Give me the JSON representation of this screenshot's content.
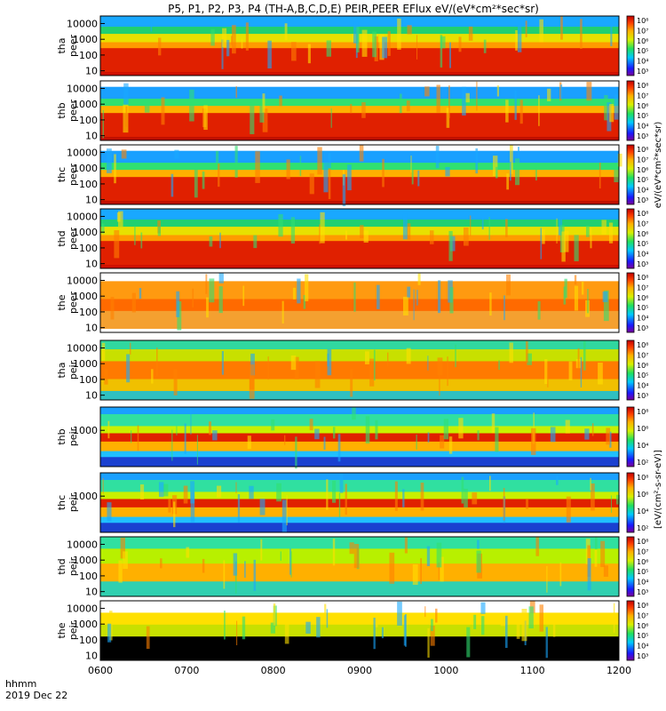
{
  "chart_data": {
    "type": "heatmap",
    "title": "P5, P1, P2, P3, P4 (TH-A,B,C,D,E) PEIR,PEER EFlux eV/(eV*cm²*sec*sr)",
    "x_time_labels": [
      "0600",
      "0700",
      "0800",
      "0900",
      "1000",
      "1100",
      "1200"
    ],
    "x_range_hhmm": [
      "0600",
      "1200"
    ],
    "xlabel_line1": "hhmm",
    "xlabel_line2": "2019 Dec 22",
    "y_scale": "log",
    "colorbar_units": "[eV/(cm²-s-sr-eV)]",
    "colorbar_units_short": "eV/(eV*cm²*sec*sr)",
    "colorbar_tick_labels": [
      "10⁸",
      "10⁷",
      "10⁶",
      "10⁵",
      "10⁴",
      "10³"
    ],
    "colorbar_tick_labels_ion_c": [
      "10⁸",
      "10⁶",
      "10⁴",
      "10²"
    ],
    "panels": [
      {
        "probe": "tha",
        "species": "peer",
        "ylabel_1": "tha",
        "ylabel_2": "peer",
        "yticks": [
          "10000",
          "1000",
          "100",
          "10"
        ],
        "yrange": [
          5,
          30000
        ]
      },
      {
        "probe": "thb",
        "species": "peer",
        "ylabel_1": "thb",
        "ylabel_2": "peer",
        "yticks": [
          "10000",
          "1000",
          "100",
          "10"
        ],
        "yrange": [
          5,
          30000
        ]
      },
      {
        "probe": "thc",
        "species": "peer",
        "ylabel_1": "thc",
        "ylabel_2": "peer",
        "yticks": [
          "10000",
          "1000",
          "100",
          "10"
        ],
        "yrange": [
          5,
          30000
        ]
      },
      {
        "probe": "thd",
        "species": "peer",
        "ylabel_1": "thd",
        "ylabel_2": "peer",
        "yticks": [
          "10000",
          "1000",
          "100",
          "10"
        ],
        "yrange": [
          5,
          30000
        ]
      },
      {
        "probe": "the",
        "species": "peer",
        "ylabel_1": "the",
        "ylabel_2": "peer",
        "yticks": [
          "10000",
          "1000",
          "100",
          "10"
        ],
        "yrange": [
          5,
          30000
        ]
      },
      {
        "probe": "tha",
        "species": "peir",
        "ylabel_1": "tha",
        "ylabel_2": "peir",
        "yticks": [
          "10000",
          "1000",
          "100",
          "10"
        ],
        "yrange": [
          5,
          30000
        ]
      },
      {
        "probe": "thb",
        "species": "peir",
        "ylabel_1": "thb",
        "ylabel_2": "peir",
        "yticks": [
          "1000"
        ],
        "yrange": [
          5,
          30000
        ]
      },
      {
        "probe": "thc",
        "species": "peir",
        "ylabel_1": "thc",
        "ylabel_2": "peir",
        "yticks": [
          "1000"
        ],
        "yrange": [
          5,
          30000
        ]
      },
      {
        "probe": "thd",
        "species": "peir",
        "ylabel_1": "thd",
        "ylabel_2": "peir",
        "yticks": [
          "10000",
          "1000",
          "100",
          "10"
        ],
        "yrange": [
          5,
          30000
        ]
      },
      {
        "probe": "the",
        "species": "peir",
        "ylabel_1": "the",
        "ylabel_2": "peir",
        "yticks": [
          "10000",
          "1000",
          "100",
          "10"
        ],
        "yrange": [
          5,
          30000
        ]
      }
    ]
  }
}
